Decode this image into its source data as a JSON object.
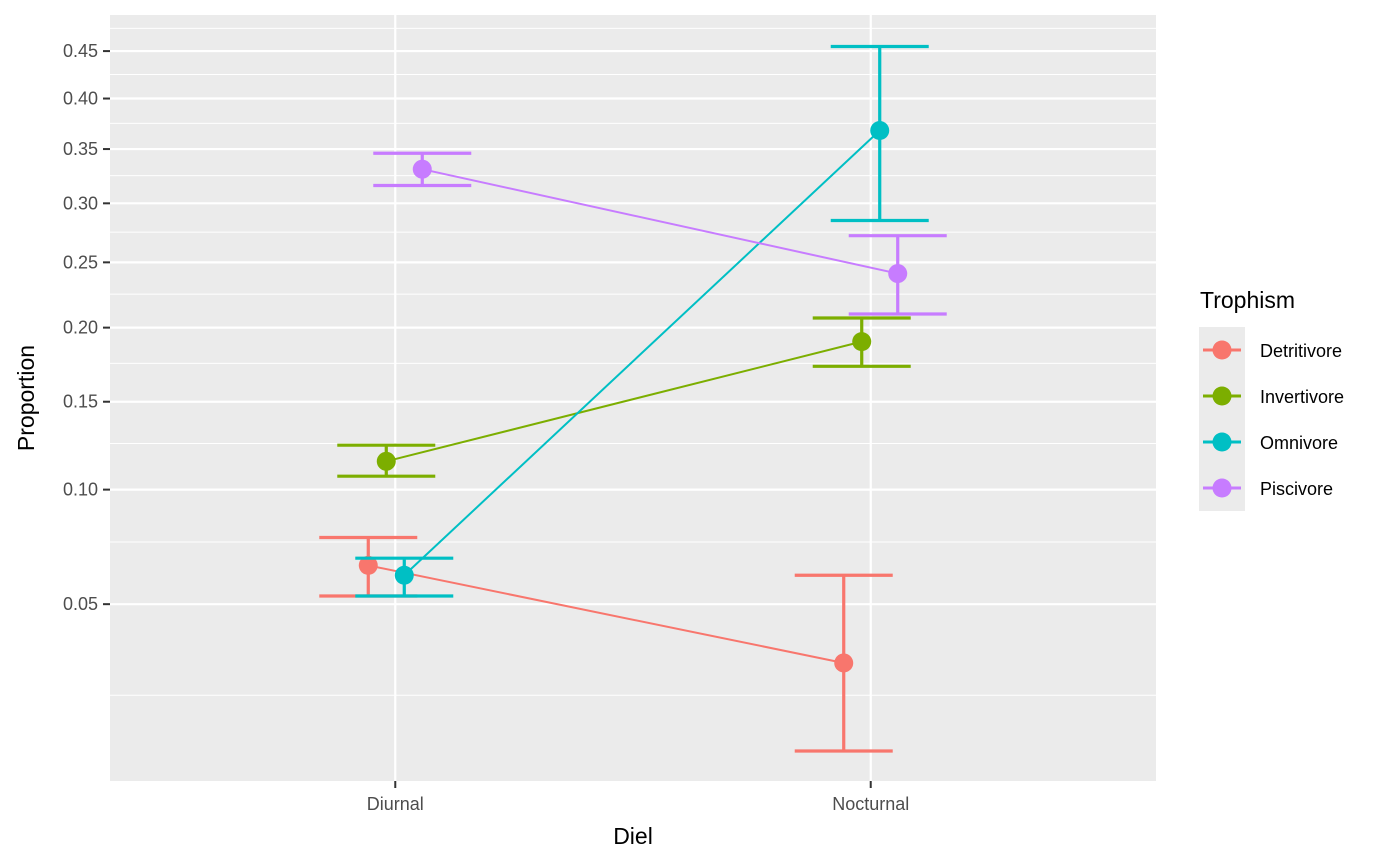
{
  "chart_data": {
    "type": "line",
    "xlabel": "Diel",
    "ylabel": "Proportion",
    "categories": [
      "Diurnal",
      "Nocturnal"
    ],
    "y_scale": "sqrt",
    "ylim": [
      0.0065,
      0.49
    ],
    "y_ticks": [
      0.05,
      0.1,
      0.15,
      0.2,
      0.25,
      0.3,
      0.35,
      0.4,
      0.45
    ],
    "y_tick_labels": [
      "0.05",
      "0.10",
      "0.15",
      "0.20",
      "0.25",
      "0.30",
      "0.35",
      "0.40",
      "0.45"
    ],
    "y_minor_ticks": [
      0.0225,
      0.075,
      0.125,
      0.175,
      0.225,
      0.275,
      0.325,
      0.375,
      0.425,
      0.475
    ],
    "grid": true,
    "legend": {
      "title": "Trophism",
      "position": "right"
    },
    "series": [
      {
        "name": "Detritivore",
        "color": "#F8766D",
        "values": [
          0.065,
          0.031
        ],
        "lower": [
          0.053,
          0.011
        ],
        "upper": [
          0.077,
          0.061
        ]
      },
      {
        "name": "Invertivore",
        "color": "#7CAE00",
        "values": [
          0.115,
          0.19
        ],
        "lower": [
          0.107,
          0.173
        ],
        "upper": [
          0.124,
          0.207
        ]
      },
      {
        "name": "Omnivore",
        "color": "#00BFC4",
        "values": [
          0.061,
          0.368
        ],
        "lower": [
          0.053,
          0.285
        ],
        "upper": [
          0.068,
          0.455
        ]
      },
      {
        "name": "Piscivore",
        "color": "#C77CFF",
        "values": [
          0.331,
          0.241
        ],
        "lower": [
          0.316,
          0.21
        ],
        "upper": [
          0.346,
          0.272
        ]
      }
    ]
  }
}
